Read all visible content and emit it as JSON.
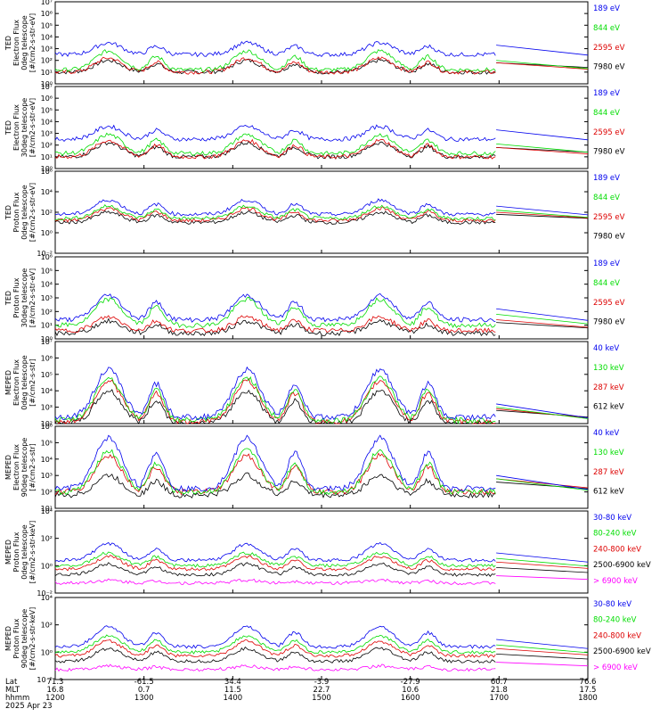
{
  "time_axis": {
    "rows": [
      {
        "label": "Lat",
        "values": [
          "71.3",
          "-61.5",
          "34.4",
          "-3.9",
          "-27.9",
          "60.7",
          "76.6"
        ]
      },
      {
        "label": "MLT",
        "values": [
          "16.8",
          "0.7",
          "11.5",
          "22.7",
          "10.6",
          "21.8",
          "17.5"
        ]
      },
      {
        "label": "hhmm",
        "values": [
          "1200",
          "1300",
          "1400",
          "1500",
          "1600",
          "1700",
          "1800"
        ]
      }
    ],
    "date": "2025 Apr 23",
    "range_hours": [
      12,
      18
    ]
  },
  "colors": {
    "black": "#000000",
    "red": "#dd0000",
    "green": "#00dd00",
    "blue": "#0000ee",
    "magenta": "#ff00ff"
  },
  "chart_data": [
    {
      "type": "line",
      "ylabel": [
        "TED",
        "Electron Flux",
        "0deg telescope",
        "[#/cm2-s-str-eV]"
      ],
      "yticks": [
        "10⁰",
        "10¹",
        "10²",
        "10³",
        "10⁴",
        "10⁵",
        "10⁶",
        "10⁷"
      ],
      "ylim_log": [
        0,
        7
      ],
      "series": [
        {
          "name": "7980 eV",
          "color": "black",
          "base": 1.0,
          "peak": 2.0
        },
        {
          "name": "2595 eV",
          "color": "red",
          "base": 1.0,
          "peak": 2.2
        },
        {
          "name": "844 eV",
          "color": "green",
          "base": 1.2,
          "peak": 2.8
        },
        {
          "name": "189 eV",
          "color": "blue",
          "base": 2.5,
          "peak": 3.5
        }
      ]
    },
    {
      "type": "line",
      "ylabel": [
        "TED",
        "Electron Flux",
        "30deg telescope",
        "[#/cm2-s-str-eV]"
      ],
      "yticks": [
        "10⁰",
        "10¹",
        "10²",
        "10³",
        "10⁴",
        "10⁵",
        "10⁶",
        "10⁷"
      ],
      "ylim_log": [
        0,
        7
      ],
      "series": [
        {
          "name": "7980 eV",
          "color": "black",
          "base": 1.0,
          "peak": 2.2
        },
        {
          "name": "2595 eV",
          "color": "red",
          "base": 1.0,
          "peak": 2.4
        },
        {
          "name": "844 eV",
          "color": "green",
          "base": 1.3,
          "peak": 2.9
        },
        {
          "name": "189 eV",
          "color": "blue",
          "base": 2.5,
          "peak": 3.6
        }
      ]
    },
    {
      "type": "line",
      "ylabel": [
        "TED",
        "Proton Flux",
        "0deg telescope",
        "[#/cm2-s-str-eV]"
      ],
      "yticks": [
        "10⁻²",
        "10⁰",
        "10²",
        "10⁴",
        "10⁶"
      ],
      "ylim_log": [
        -2,
        6
      ],
      "series": [
        {
          "name": "7980 eV",
          "color": "black",
          "base": 1.0,
          "peak": 2.0
        },
        {
          "name": "2595 eV",
          "color": "red",
          "base": 1.2,
          "peak": 2.4
        },
        {
          "name": "844 eV",
          "color": "green",
          "base": 1.4,
          "peak": 2.6
        },
        {
          "name": "189 eV",
          "color": "blue",
          "base": 1.8,
          "peak": 3.2
        }
      ]
    },
    {
      "type": "line",
      "ylabel": [
        "TED",
        "Proton Flux",
        "30deg telescope",
        "[#/cm2-s-str-eV]"
      ],
      "yticks": [
        "10⁰",
        "10¹",
        "10²",
        "10³",
        "10⁴",
        "10⁵",
        "10⁶"
      ],
      "ylim_log": [
        0,
        6
      ],
      "series": [
        {
          "name": "7980 eV",
          "color": "black",
          "base": 0.4,
          "peak": 1.3
        },
        {
          "name": "2595 eV",
          "color": "red",
          "base": 0.6,
          "peak": 1.6
        },
        {
          "name": "844 eV",
          "color": "green",
          "base": 1.0,
          "peak": 2.9
        },
        {
          "name": "189 eV",
          "color": "blue",
          "base": 1.4,
          "peak": 3.2
        }
      ]
    },
    {
      "type": "line",
      "ylabel": [
        "MEPED",
        "Electron Flux",
        "0deg telescope",
        "[#/cm2-s-str]"
      ],
      "yticks": [
        "10²",
        "10³",
        "10⁴",
        "10⁵",
        "10⁶",
        "10⁷"
      ],
      "ylim_log": [
        2,
        7
      ],
      "series": [
        {
          "name": "612 keV",
          "color": "black",
          "base": 2.0,
          "peak": 4.0
        },
        {
          "name": "287 keV",
          "color": "red",
          "base": 2.1,
          "peak": 4.6
        },
        {
          "name": "130 keV",
          "color": "green",
          "base": 2.2,
          "peak": 4.8
        },
        {
          "name": "40 keV",
          "color": "blue",
          "base": 2.4,
          "peak": 5.3
        }
      ]
    },
    {
      "type": "line",
      "ylabel": [
        "MEPED",
        "Electron Flux",
        "90deg telescope",
        "[#/cm2-s-str]"
      ],
      "yticks": [
        "10¹",
        "10²",
        "10³",
        "10⁴",
        "10⁵",
        "10⁶"
      ],
      "ylim_log": [
        1,
        6
      ],
      "series": [
        {
          "name": "612 keV",
          "color": "black",
          "base": 1.8,
          "peak": 3.0
        },
        {
          "name": "287 keV",
          "color": "red",
          "base": 2.0,
          "peak": 4.2
        },
        {
          "name": "130 keV",
          "color": "green",
          "base": 2.0,
          "peak": 4.5
        },
        {
          "name": "40 keV",
          "color": "blue",
          "base": 2.2,
          "peak": 5.3
        }
      ]
    },
    {
      "type": "line",
      "ylabel": [
        "MEPED",
        "Proton Flux",
        "0deg telescope",
        "[#/cm2-s-str-keV]"
      ],
      "yticks": [
        "10⁻²",
        "10⁰",
        "10²",
        "10⁴"
      ],
      "ylim_log": [
        -3,
        6
      ],
      "series": [
        {
          "name": "> 6900 keV",
          "color": "magenta",
          "base": -1.9,
          "peak": -1.6
        },
        {
          "name": "2500-6900 keV",
          "color": "black",
          "base": -1.0,
          "peak": 0.2
        },
        {
          "name": "240-800 keV",
          "color": "red",
          "base": -0.4,
          "peak": 1.0
        },
        {
          "name": "80-240 keV",
          "color": "green",
          "base": 0.0,
          "peak": 1.4
        },
        {
          "name": "30-80 keV",
          "color": "blue",
          "base": 0.6,
          "peak": 2.4
        }
      ]
    },
    {
      "type": "line",
      "ylabel": [
        "MEPED",
        "Proton Flux",
        "90deg telescope",
        "[#/cm2-s-str-keV]"
      ],
      "yticks": [
        "10⁻²",
        "10⁰",
        "10²",
        "10⁴"
      ],
      "ylim_log": [
        -3,
        6
      ],
      "series": [
        {
          "name": "> 6900 keV",
          "color": "magenta",
          "base": -1.9,
          "peak": -1.5
        },
        {
          "name": "2500-6900 keV",
          "color": "black",
          "base": -1.0,
          "peak": 0.4
        },
        {
          "name": "240-800 keV",
          "color": "red",
          "base": -0.4,
          "peak": 1.2
        },
        {
          "name": "80-240 keV",
          "color": "green",
          "base": 0.0,
          "peak": 1.8
        },
        {
          "name": "30-80 keV",
          "color": "blue",
          "base": 0.6,
          "peak": 2.8
        }
      ]
    }
  ]
}
